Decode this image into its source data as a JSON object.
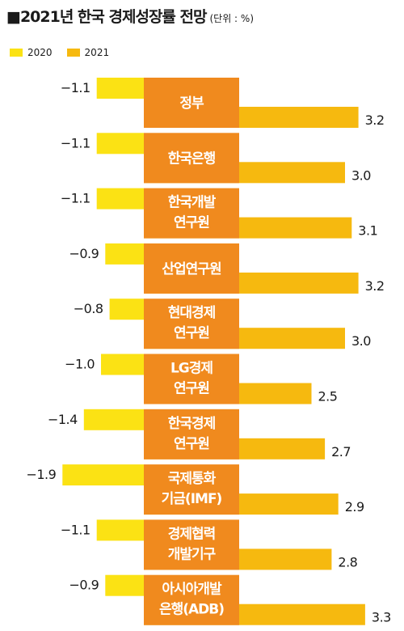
{
  "title": "2021년 한국 경제성장률 전망",
  "unit": "(단위 : %)",
  "colors": {
    "y2020": "#fbe214",
    "y2021": "#f6b90f",
    "category_box": "#f08a1e"
  },
  "chart_data": {
    "type": "bar",
    "title": "2021년 한국 경제성장률 전망",
    "unit": "(단위 : %)",
    "legend": [
      "2020",
      "2021"
    ],
    "categories": [
      [
        "정부"
      ],
      [
        "한국은행"
      ],
      [
        "한국개발",
        "연구원"
      ],
      [
        "산업연구원"
      ],
      [
        "현대경제",
        "연구원"
      ],
      [
        "LG경제",
        "연구원"
      ],
      [
        "한국경제",
        "연구원"
      ],
      [
        "국제통화",
        "기금(IMF)"
      ],
      [
        "경제협력",
        "개발기구"
      ],
      [
        "아시아개발",
        "은행(ADB)"
      ]
    ],
    "series": [
      {
        "name": "2020",
        "values": [
          -1.1,
          -1.1,
          -1.1,
          -0.9,
          -0.8,
          -1.0,
          -1.4,
          -1.9,
          -1.1,
          -0.9
        ],
        "labels": [
          "−1.1",
          "−1.1",
          "−1.1",
          "−0.9",
          "−0.8",
          "−1.0",
          "−1.4",
          "−1.9",
          "−1.1",
          "−0.9"
        ]
      },
      {
        "name": "2021",
        "values": [
          3.2,
          3.0,
          3.1,
          3.2,
          3.0,
          2.5,
          2.7,
          2.9,
          2.8,
          3.3
        ],
        "labels": [
          "3.2",
          "3.0",
          "3.1",
          "3.2",
          "3.0",
          "2.5",
          "2.7",
          "2.9",
          "2.8",
          "3.3"
        ]
      }
    ]
  }
}
